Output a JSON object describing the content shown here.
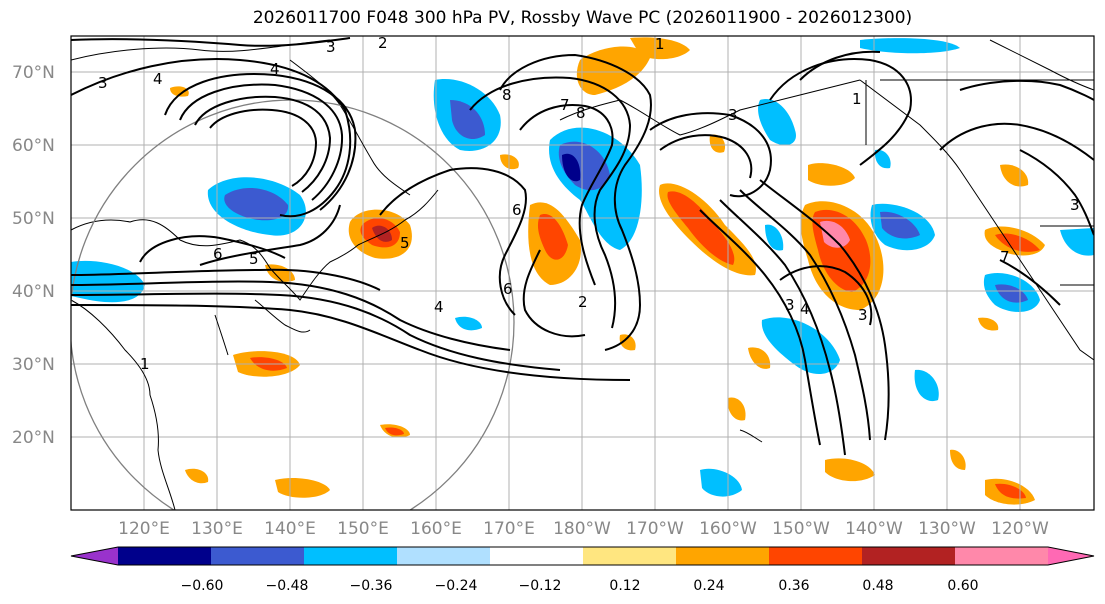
{
  "title": "2026011700 F048 300 hPa PV, Rossby Wave PC (2026011900 - 2026012300)",
  "map": {
    "lat_labels": [
      "70°N",
      "60°N",
      "50°N",
      "40°N",
      "30°N",
      "20°N"
    ],
    "lon_labels": [
      "120°E",
      "130°E",
      "140°E",
      "150°E",
      "160°E",
      "170°E",
      "180°W",
      "170°W",
      "160°W",
      "150°W",
      "140°W",
      "130°W",
      "120°W"
    ],
    "contour_labels": [
      "3",
      "4",
      "4",
      "3",
      "8",
      "7",
      "8",
      "5",
      "6",
      "5",
      "6",
      "4",
      "6",
      "2",
      "1",
      "3",
      "3",
      "4",
      "3",
      "1",
      "3",
      "2",
      "1",
      "7"
    ]
  },
  "colorbar": {
    "ticks": [
      "−0.60",
      "−0.48",
      "−0.36",
      "−0.24",
      "−0.12",
      "0.12",
      "0.24",
      "0.36",
      "0.48",
      "0.60"
    ],
    "colors": [
      "#9932cc",
      "#00008b",
      "#3c5ad0",
      "#00bfff",
      "#b0e0ff",
      "#ffffff",
      "#ffe680",
      "#ffa500",
      "#ff4500",
      "#b22222",
      "#ff88aa",
      "#ff69b4"
    ]
  }
}
